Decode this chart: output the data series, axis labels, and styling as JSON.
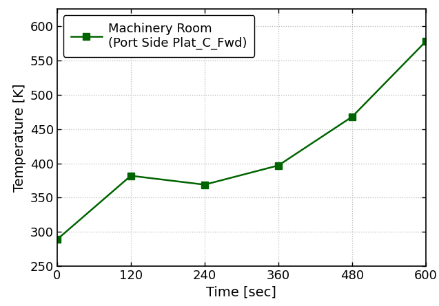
{
  "x": [
    0,
    120,
    240,
    360,
    480,
    600
  ],
  "y": [
    289,
    382,
    369,
    397,
    468,
    578
  ],
  "line_color": "#006400",
  "marker": "s",
  "marker_color": "#006400",
  "marker_size": 7,
  "line_width": 1.8,
  "xlabel": "Time [sec]",
  "ylabel": "Temperature [K]",
  "xlim": [
    0,
    600
  ],
  "ylim": [
    250,
    625
  ],
  "yticks": [
    250,
    300,
    350,
    400,
    450,
    500,
    550,
    600
  ],
  "xticks": [
    0,
    120,
    240,
    360,
    480,
    600
  ],
  "legend_label_line1": "Machinery Room",
  "legend_label_line2": "(Port Side Plat_C_Fwd)",
  "grid_color": "#bbbbbb",
  "background_color": "#ffffff",
  "xlabel_fontsize": 14,
  "ylabel_fontsize": 14,
  "tick_fontsize": 13,
  "legend_fontsize": 13
}
